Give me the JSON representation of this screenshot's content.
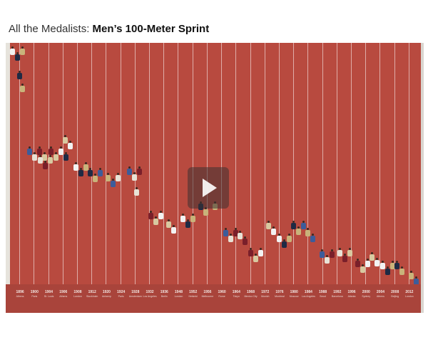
{
  "page": {
    "title_lead": "All the Medalists:",
    "title_main": " Men’s 100-Meter Sprint"
  },
  "video": {
    "play_label": "play-icon",
    "years": [
      {
        "year": "1896",
        "city": "Athens"
      },
      {
        "year": "1900",
        "city": "Paris"
      },
      {
        "year": "1904",
        "city": "St. Louis"
      },
      {
        "year": "1906",
        "city": "Athens"
      },
      {
        "year": "1908",
        "city": "London"
      },
      {
        "year": "1912",
        "city": "Stockholm"
      },
      {
        "year": "1920",
        "city": "Antwerp"
      },
      {
        "year": "1924",
        "city": "Paris"
      },
      {
        "year": "1928",
        "city": "Amsterdam"
      },
      {
        "year": "1932",
        "city": "Los Angeles"
      },
      {
        "year": "1936",
        "city": "Berlin"
      },
      {
        "year": "1948",
        "city": "London"
      },
      {
        "year": "1952",
        "city": "Helsinki"
      },
      {
        "year": "1956",
        "city": "Melbourne"
      },
      {
        "year": "1960",
        "city": "Rome"
      },
      {
        "year": "1964",
        "city": "Tokyo"
      },
      {
        "year": "1968",
        "city": "Mexico City"
      },
      {
        "year": "1972",
        "city": "Munich"
      },
      {
        "year": "1976",
        "city": "Montreal"
      },
      {
        "year": "1980",
        "city": "Moscow"
      },
      {
        "year": "1984",
        "city": "Los Angeles"
      },
      {
        "year": "1988",
        "city": "Seoul"
      },
      {
        "year": "1992",
        "city": "Barcelona"
      },
      {
        "year": "1996",
        "city": "Atlanta"
      },
      {
        "year": "2000",
        "city": "Sydney"
      },
      {
        "year": "2004",
        "city": "Athens"
      },
      {
        "year": "2008",
        "city": "Beijing"
      },
      {
        "year": "2012",
        "city": "London"
      }
    ]
  }
}
